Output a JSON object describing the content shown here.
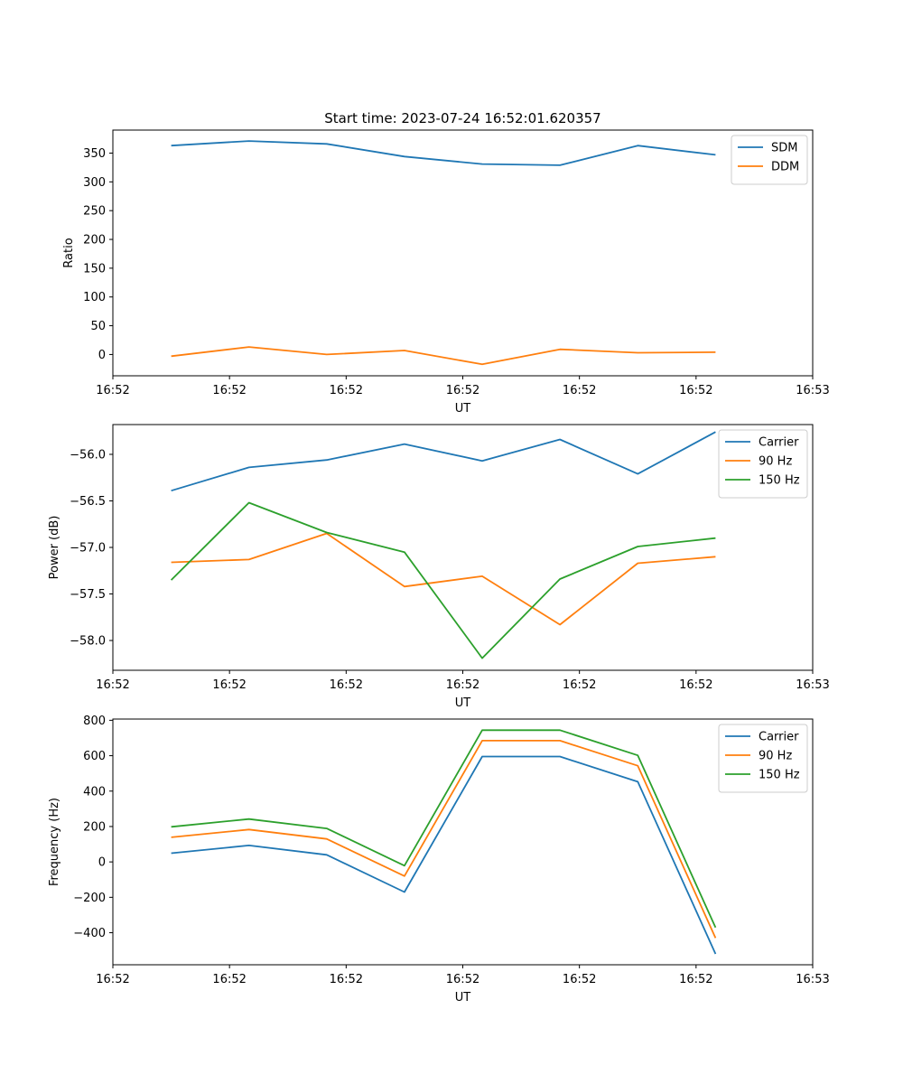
{
  "figure_title": "Start time: 2023-07-24 16:52:01.620357",
  "chart_data": [
    {
      "type": "line",
      "title": "Start time: 2023-07-24 16:52:01.620357",
      "xlabel": "UT",
      "ylabel": "Ratio",
      "x": [
        1,
        2,
        3,
        4,
        5,
        6,
        7,
        8
      ],
      "xlim": [
        0.25,
        9.25
      ],
      "xticks": [
        0.25,
        1.75,
        3.25,
        4.75,
        6.25,
        7.75,
        9.25
      ],
      "xtick_labels": [
        "16:52",
        "16:52",
        "16:52",
        "16:52",
        "16:52",
        "16:52",
        "16:53"
      ],
      "ylim": [
        -37,
        390
      ],
      "yticks": [
        0,
        50,
        100,
        150,
        200,
        250,
        300,
        350
      ],
      "ytick_labels": [
        "0",
        "50",
        "100",
        "150",
        "200",
        "250",
        "300",
        "350"
      ],
      "legend": "top-right",
      "series": [
        {
          "name": "SDM",
          "color": "#1f77b4",
          "values": [
            363,
            371,
            366,
            344,
            331,
            329,
            363,
            347
          ]
        },
        {
          "name": "DDM",
          "color": "#ff7f0e",
          "values": [
            -3,
            13,
            0,
            7,
            -17,
            9,
            3,
            4
          ]
        }
      ]
    },
    {
      "type": "line",
      "title": "",
      "xlabel": "UT",
      "ylabel": "Power (dB)",
      "x": [
        1,
        2,
        3,
        4,
        5,
        6,
        7,
        8
      ],
      "xlim": [
        0.25,
        9.25
      ],
      "xticks": [
        0.25,
        1.75,
        3.25,
        4.75,
        6.25,
        7.75,
        9.25
      ],
      "xtick_labels": [
        "16:52",
        "16:52",
        "16:52",
        "16:52",
        "16:52",
        "16:52",
        "16:53"
      ],
      "ylim": [
        -58.32,
        -55.68
      ],
      "yticks": [
        -58.0,
        -57.5,
        -57.0,
        -56.5,
        -56.0
      ],
      "ytick_labels": [
        "−58.0",
        "−57.5",
        "−57.0",
        "−56.5",
        "−56.0"
      ],
      "legend": "top-right",
      "series": [
        {
          "name": "Carrier",
          "color": "#1f77b4",
          "values": [
            -56.39,
            -56.14,
            -56.06,
            -55.89,
            -56.07,
            -55.84,
            -56.21,
            -55.76
          ]
        },
        {
          "name": "90 Hz",
          "color": "#ff7f0e",
          "values": [
            -57.16,
            -57.13,
            -56.85,
            -57.42,
            -57.31,
            -57.83,
            -57.17,
            -57.1
          ]
        },
        {
          "name": "150 Hz",
          "color": "#2ca02c",
          "values": [
            -57.35,
            -56.52,
            -56.84,
            -57.05,
            -58.19,
            -57.34,
            -56.99,
            -56.9
          ]
        }
      ]
    },
    {
      "type": "line",
      "title": "",
      "xlabel": "UT",
      "ylabel": "Frequency (Hz)",
      "x": [
        1,
        2,
        3,
        4,
        5,
        6,
        7,
        8
      ],
      "xlim": [
        0.25,
        9.25
      ],
      "xticks": [
        0.25,
        1.75,
        3.25,
        4.75,
        6.25,
        7.75,
        9.25
      ],
      "xtick_labels": [
        "16:52",
        "16:52",
        "16:52",
        "16:52",
        "16:52",
        "16:52",
        "16:53"
      ],
      "ylim": [
        -581,
        807
      ],
      "yticks": [
        -400,
        -200,
        0,
        200,
        400,
        600,
        800
      ],
      "ytick_labels": [
        "−400",
        "−200",
        "0",
        "200",
        "400",
        "600",
        "800"
      ],
      "legend": "top-right",
      "series": [
        {
          "name": "Carrier",
          "color": "#1f77b4",
          "values": [
            49,
            93,
            40,
            -170,
            595,
            595,
            453,
            -520
          ]
        },
        {
          "name": "90 Hz",
          "color": "#ff7f0e",
          "values": [
            139,
            183,
            130,
            -80,
            685,
            685,
            543,
            -430
          ]
        },
        {
          "name": "150 Hz",
          "color": "#2ca02c",
          "values": [
            198,
            242,
            189,
            -21,
            744,
            744,
            602,
            -371
          ]
        }
      ]
    }
  ]
}
